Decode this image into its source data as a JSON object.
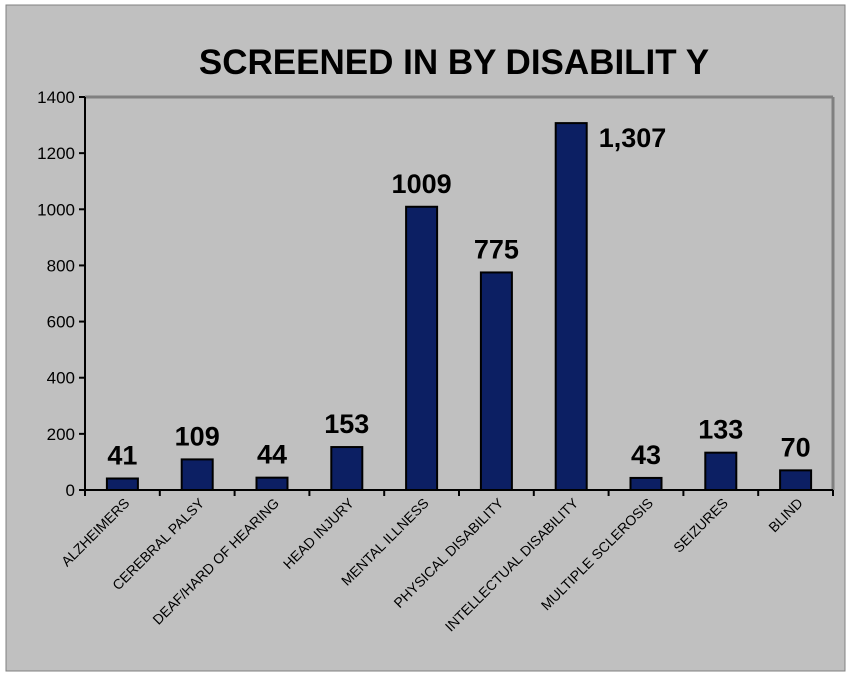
{
  "chart_data": {
    "type": "bar",
    "title": "SCREENED IN BY DISABILIT Y",
    "xlabel": "",
    "ylabel": "",
    "ylim": [
      0,
      1400
    ],
    "yticks": [
      "0",
      "200",
      "400",
      "600",
      "800",
      "1000",
      "1200",
      "1400"
    ],
    "grid": false,
    "categories": [
      "ALZHEIMERS",
      "CEREBRAL PALSY",
      "DEAF/HARD OF HEARING",
      "HEAD INJURY",
      "MENTAL ILLNESS",
      "PHYSICAL DISABILITY",
      "INTELLECTUAL DISABILITY",
      "MULTIPLE SCLEROSIS",
      "SEIZURES",
      "BLIND"
    ],
    "values": [
      41,
      109,
      44,
      153,
      1009,
      775,
      1307,
      43,
      133,
      70
    ],
    "data_labels": [
      "41",
      "109",
      "44",
      "153",
      "1009",
      "775",
      "1,307",
      "43",
      "133",
      "70"
    ],
    "colors": {
      "background": "#c0c0c0",
      "plot_area": "#c0c0c0",
      "bar_fill": "#0c1f63",
      "bar_stroke": "#000000",
      "plot_border": "#808080"
    }
  }
}
